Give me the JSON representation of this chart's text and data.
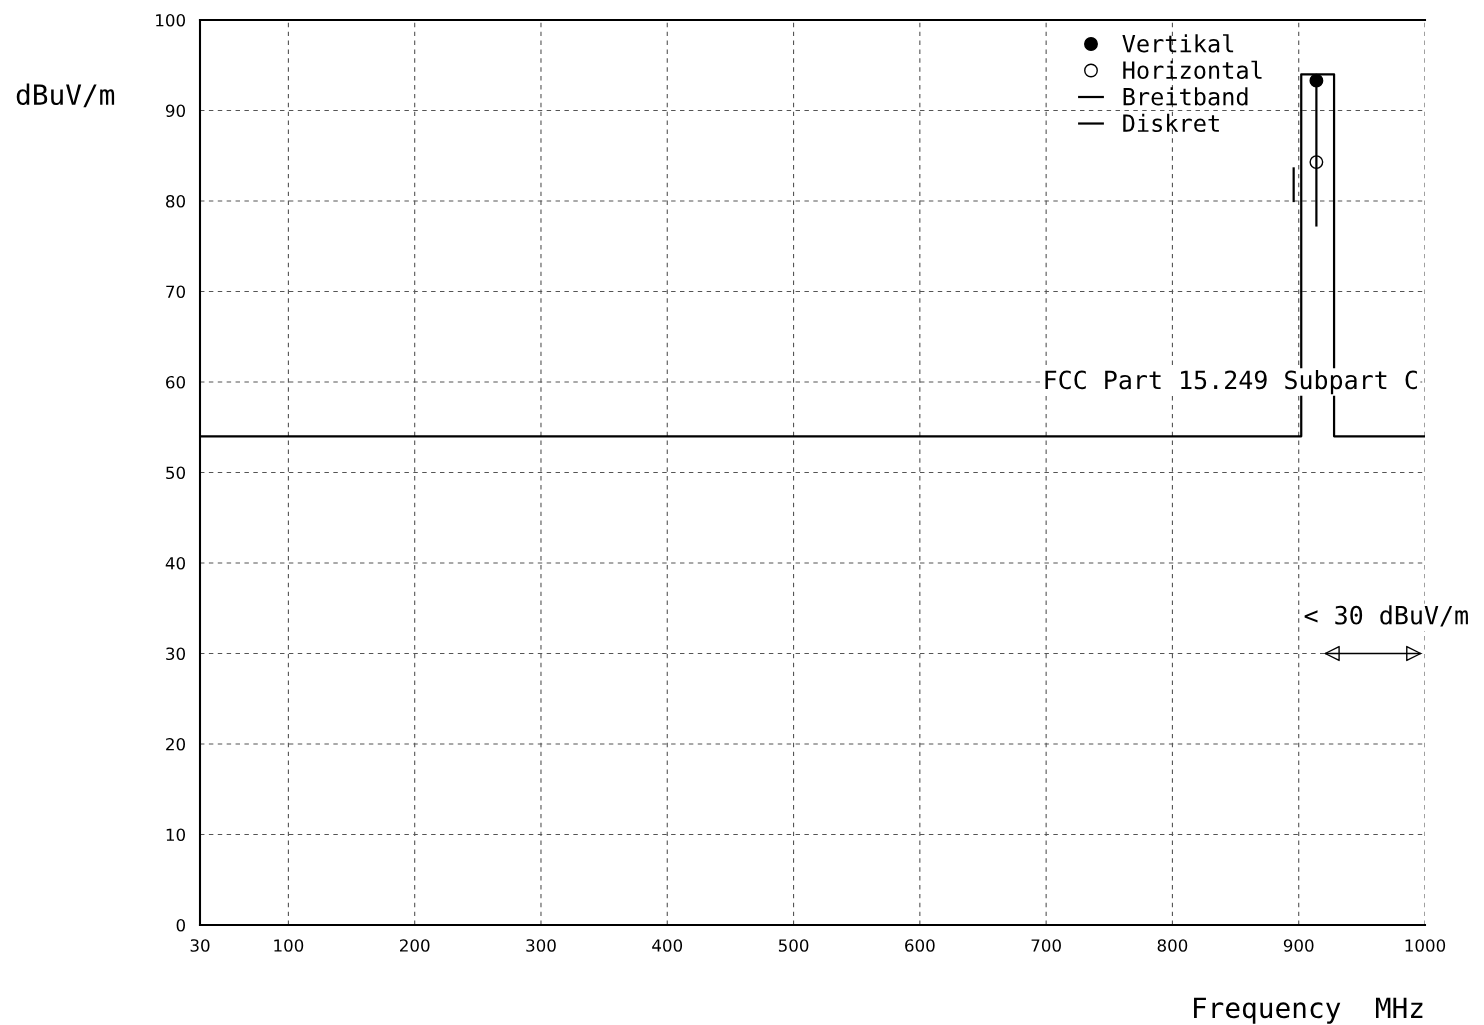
{
  "chart_data": {
    "type": "step",
    "xlabel": "Frequency  MHz",
    "ylabel": "dBuV/m",
    "xlim": [
      30,
      1000
    ],
    "xticks": [
      30,
      100,
      200,
      300,
      400,
      500,
      600,
      700,
      800,
      900,
      1000
    ],
    "ylim": [
      0,
      100
    ],
    "yticks": [
      0,
      10,
      20,
      30,
      40,
      50,
      60,
      70,
      80,
      90,
      100
    ],
    "grid": true,
    "legend": "top right",
    "series": [
      {
        "color": "#000000",
        "x": [
          30,
          902,
          928,
          1000
        ],
        "values": [
          54,
          94,
          54,
          54
        ]
      },
      {
        "name": "Vertikal",
        "type": "scatter",
        "color": "#000000",
        "x": [
          914
        ],
        "values": [
          93.3
        ],
        "marker": "circle"
      },
      {
        "name": "Horizontal",
        "type": "scatter",
        "color": "#ffffff",
        "x": [
          914
        ],
        "values": [
          84.3
        ],
        "marker": "circle"
      },
      {
        "name": "Breitband",
        "type": "line",
        "color": "#000000",
        "x": [
          896,
          896
        ],
        "values": [
          83.6,
          80
        ]
      },
      {
        "name": "Diskret",
        "type": "line",
        "color": "#000000",
        "x": [
          914,
          914
        ],
        "values": [
          93.3,
          77.3
        ]
      }
    ],
    "annotations": [
      "FCC Part 15.249 Subpart C",
      "< 30 dBuV/m"
    ]
  }
}
